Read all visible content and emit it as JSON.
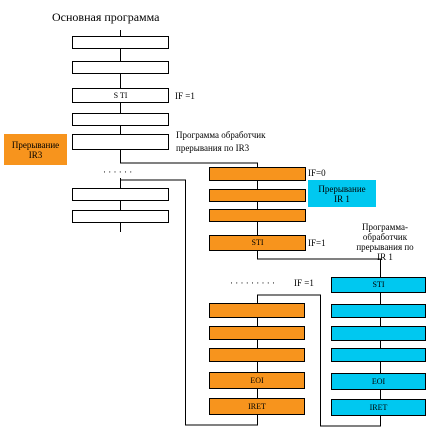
{
  "title": "Основная программа",
  "main_program": {
    "sti": "S TI",
    "if_label": "IF =1",
    "dots": "· · · · · ·"
  },
  "irq3": {
    "tag_line1": "Прерывание",
    "tag_line2": "IR3",
    "handler_line1": "Программа обработчик",
    "handler_line2": "прерывания по IR3",
    "if0": "IF=0",
    "sti": "STI",
    "if1": "IF=1",
    "dots": "· · · · · · · · ·",
    "eoi": "EOI",
    "iret": "IRET",
    "color": "#f7941d"
  },
  "irq1": {
    "tag_line1": "Прерывание",
    "tag_line2": "IR 1",
    "handler_line1": "Программа-",
    "handler_line2": "обработчик",
    "handler_line3": "прерывания по",
    "handler_line4": "IR 1",
    "if1": "IF =1",
    "sti": "STI",
    "eoi": "EOI",
    "iret": "IRET",
    "color": "#00c8f0"
  }
}
